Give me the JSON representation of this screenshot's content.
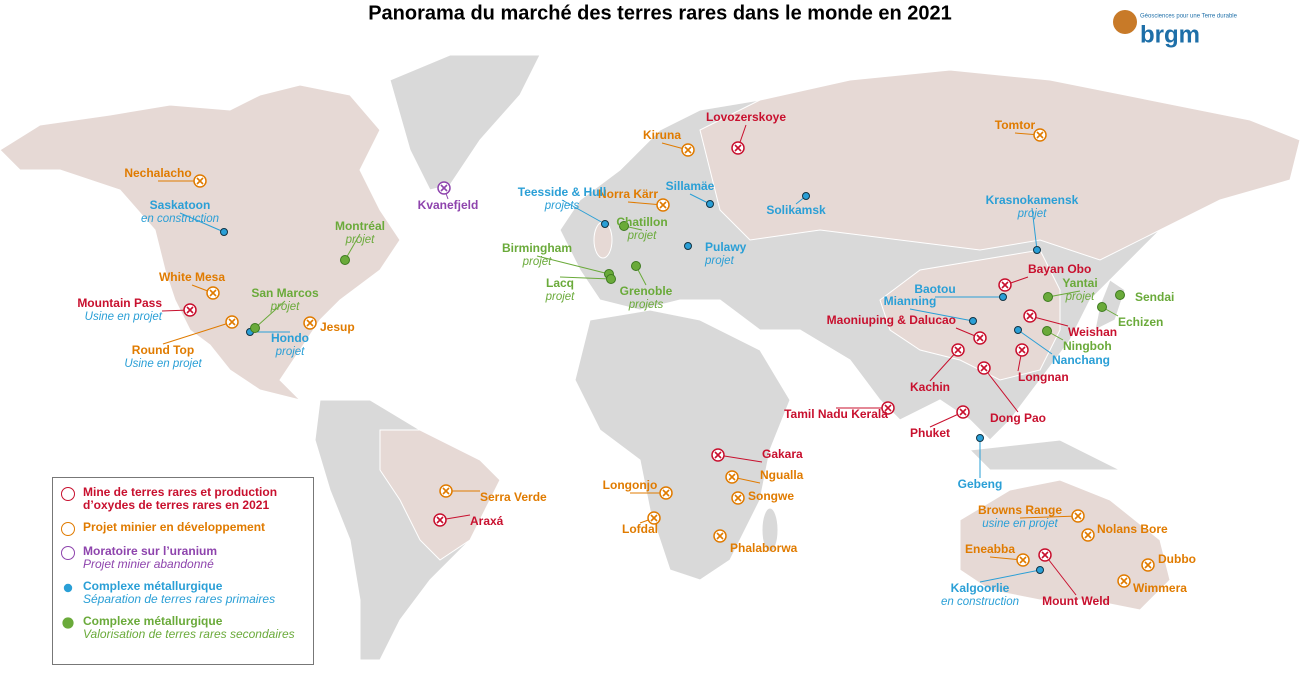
{
  "header": {
    "title": "Panorama du marché des terres rares dans le monde en 2021",
    "logo": "brgm",
    "tagline": "Géosciences pour une Terre durable"
  },
  "groups": [
    {
      "title": "Mine de terres rares et production d’oxydes de terres rares en 2021",
      "sites": [
        {
          "name": "Lovozerskoye"
        },
        {
          "name": "Bayan Obo"
        },
        {
          "name": "Mountain Pass",
          "note": "Usine en projet"
        },
        {
          "name": "Maoniuping & Dalucao"
        },
        {
          "name": "Weishan"
        },
        {
          "name": "Kachin"
        },
        {
          "name": "Longnan"
        },
        {
          "name": "Tamil Nadu Kerala"
        },
        {
          "name": "Phuket"
        },
        {
          "name": "Dong Pao"
        },
        {
          "name": "Gakara"
        },
        {
          "name": "Araxá"
        },
        {
          "name": "Mount Weld"
        }
      ]
    },
    {
      "title": "Projet minier en développement",
      "sites": [
        {
          "name": "Kiruna"
        },
        {
          "name": "Tomtor"
        },
        {
          "name": "Nechalacho"
        },
        {
          "name": "Norra Kärr"
        },
        {
          "name": "White Mesa"
        },
        {
          "name": "Jesup"
        },
        {
          "name": "Round Top",
          "note": "Usine en projet"
        },
        {
          "name": "Serra Verde"
        },
        {
          "name": "Longonjo"
        },
        {
          "name": "Ngualla"
        },
        {
          "name": "Songwe"
        },
        {
          "name": "Lofdal"
        },
        {
          "name": "Phalaborwa"
        },
        {
          "name": "Browns Range",
          "note": "usine en projet"
        },
        {
          "name": "Nolans Bore"
        },
        {
          "name": "Eneabba"
        },
        {
          "name": "Dubbo"
        },
        {
          "name": "Wimmera"
        }
      ]
    },
    {
      "title": "Moratoire sur l’uranium",
      "subtitle": "Projet minier abandonné",
      "sites": [
        {
          "name": "Kvanefjeld"
        }
      ]
    },
    {
      "title": "Complexe métallurgique",
      "subtitle": "Séparation de terres rares primaires",
      "sites": [
        {
          "name": "Saskatoon",
          "note": "en construction"
        },
        {
          "name": "Teesside & Hull",
          "note": "projets"
        },
        {
          "name": "Sillamäe"
        },
        {
          "name": "Solikamsk"
        },
        {
          "name": "Pulawy",
          "note": "projet"
        },
        {
          "name": "Krasnokamensk",
          "note": "projet"
        },
        {
          "name": "Baotou"
        },
        {
          "name": "Mianning"
        },
        {
          "name": "Nanchang"
        },
        {
          "name": "Hondo",
          "note": "projet"
        },
        {
          "name": "Gebeng"
        },
        {
          "name": "Kalgoorlie",
          "note": "en construction"
        }
      ]
    },
    {
      "title": "Complexe métallurgique",
      "subtitle": "Valorisation de terres rares secondaires",
      "sites": [
        {
          "name": "Montréal",
          "note": "projet"
        },
        {
          "name": "Chatillon",
          "note": "projet"
        },
        {
          "name": "Birmingham",
          "note": "projet"
        },
        {
          "name": "Lacq",
          "note": "projet"
        },
        {
          "name": "Grenoble",
          "note": "projets"
        },
        {
          "name": "San Marcos",
          "note": "projet"
        },
        {
          "name": "Yantai",
          "note": "projet"
        },
        {
          "name": "Sendai"
        },
        {
          "name": "Echizen"
        },
        {
          "name": "Ningboh"
        }
      ]
    }
  ]
}
